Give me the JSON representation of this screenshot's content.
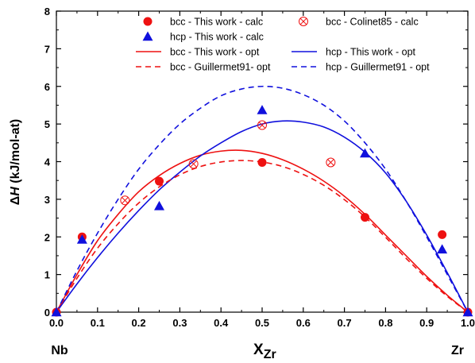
{
  "chart_data": {
    "type": "scatter",
    "xlim": [
      0.0,
      1.0
    ],
    "ylim": [
      0,
      8
    ],
    "x_ticks": [
      "0.0",
      "0.1",
      "0.2",
      "0.3",
      "0.4",
      "0.5",
      "0.6",
      "0.7",
      "0.8",
      "0.9",
      "1.0"
    ],
    "y_ticks": [
      "0",
      "1",
      "2",
      "3",
      "4",
      "5",
      "6",
      "7",
      "8"
    ],
    "ylabel_delta": "Δ",
    "ylabel_var": "H",
    "ylabel_unit": " (kJ/mol-at)",
    "xlabel_main": "X",
    "xlabel_sub": "Zr",
    "x_end_left": "Nb",
    "x_end_right": "Zr",
    "legend_position": "top",
    "grid": false,
    "colors": {
      "red": "#ee1111",
      "blue": "#1010dd"
    },
    "series": [
      {
        "name": "bcc - This work - calc",
        "kind": "points",
        "marker": "circle",
        "color": "#ee1111",
        "points": [
          [
            0.0,
            0.0
          ],
          [
            0.0625,
            2.0
          ],
          [
            0.25,
            3.48
          ],
          [
            0.5,
            3.98
          ],
          [
            0.75,
            2.52
          ],
          [
            0.9375,
            2.06
          ],
          [
            1.0,
            0.0
          ]
        ]
      },
      {
        "name": "hcp - This work - calc",
        "kind": "points",
        "marker": "triangle",
        "color": "#1010dd",
        "points": [
          [
            0.0,
            0.0
          ],
          [
            0.0625,
            1.93
          ],
          [
            0.25,
            2.82
          ],
          [
            0.5,
            5.37
          ],
          [
            0.75,
            4.22
          ],
          [
            0.9375,
            1.67
          ],
          [
            1.0,
            0.0
          ]
        ]
      },
      {
        "name": "bcc - Colinet85 - calc",
        "kind": "points",
        "marker": "circle-x",
        "color": "#ee1111",
        "points": [
          [
            0.1667,
            2.97
          ],
          [
            0.3333,
            3.94
          ],
          [
            0.5,
            4.97
          ],
          [
            0.6667,
            3.98
          ]
        ]
      },
      {
        "name": "bcc - This work - opt",
        "kind": "curve",
        "dash": false,
        "color": "#ee1111",
        "points": [
          [
            0,
            0
          ],
          [
            0.05,
            1.0
          ],
          [
            0.1,
            1.9
          ],
          [
            0.15,
            2.6
          ],
          [
            0.2,
            3.2
          ],
          [
            0.25,
            3.63
          ],
          [
            0.3,
            3.95
          ],
          [
            0.35,
            4.17
          ],
          [
            0.4,
            4.28
          ],
          [
            0.45,
            4.3
          ],
          [
            0.5,
            4.22
          ],
          [
            0.55,
            4.05
          ],
          [
            0.6,
            3.8
          ],
          [
            0.65,
            3.48
          ],
          [
            0.7,
            3.08
          ],
          [
            0.75,
            2.6
          ],
          [
            0.8,
            2.05
          ],
          [
            0.85,
            1.5
          ],
          [
            0.9,
            0.95
          ],
          [
            0.95,
            0.45
          ],
          [
            1.0,
            0
          ]
        ]
      },
      {
        "name": "hcp - This work - opt",
        "kind": "curve",
        "dash": false,
        "color": "#1010dd",
        "points": [
          [
            0,
            0
          ],
          [
            0.05,
            0.75
          ],
          [
            0.1,
            1.45
          ],
          [
            0.15,
            2.1
          ],
          [
            0.2,
            2.7
          ],
          [
            0.25,
            3.25
          ],
          [
            0.3,
            3.72
          ],
          [
            0.35,
            4.15
          ],
          [
            0.4,
            4.5
          ],
          [
            0.45,
            4.8
          ],
          [
            0.5,
            5.0
          ],
          [
            0.55,
            5.08
          ],
          [
            0.6,
            5.05
          ],
          [
            0.65,
            4.92
          ],
          [
            0.7,
            4.65
          ],
          [
            0.75,
            4.25
          ],
          [
            0.8,
            3.7
          ],
          [
            0.85,
            2.95
          ],
          [
            0.9,
            2.05
          ],
          [
            0.95,
            1.05
          ],
          [
            1.0,
            0
          ]
        ]
      },
      {
        "name": "bcc - Guillermet91- opt",
        "kind": "curve",
        "dash": true,
        "color": "#ee1111",
        "points": [
          [
            0,
            0
          ],
          [
            0.05,
            0.9
          ],
          [
            0.1,
            1.7
          ],
          [
            0.15,
            2.35
          ],
          [
            0.2,
            2.9
          ],
          [
            0.25,
            3.33
          ],
          [
            0.3,
            3.65
          ],
          [
            0.35,
            3.87
          ],
          [
            0.4,
            3.99
          ],
          [
            0.45,
            4.03
          ],
          [
            0.5,
            3.99
          ],
          [
            0.55,
            3.87
          ],
          [
            0.6,
            3.66
          ],
          [
            0.65,
            3.37
          ],
          [
            0.7,
            2.99
          ],
          [
            0.75,
            2.53
          ],
          [
            0.8,
            1.99
          ],
          [
            0.85,
            1.43
          ],
          [
            0.9,
            0.9
          ],
          [
            0.95,
            0.42
          ],
          [
            1.0,
            0
          ]
        ]
      },
      {
        "name": "hcp - Guillermet91 - opt",
        "kind": "curve",
        "dash": true,
        "color": "#1010dd",
        "points": [
          [
            0,
            0
          ],
          [
            0.05,
            1.1
          ],
          [
            0.1,
            2.1
          ],
          [
            0.15,
            3.0
          ],
          [
            0.2,
            3.8
          ],
          [
            0.25,
            4.45
          ],
          [
            0.3,
            5.0
          ],
          [
            0.35,
            5.42
          ],
          [
            0.4,
            5.75
          ],
          [
            0.45,
            5.93
          ],
          [
            0.5,
            6.0
          ],
          [
            0.55,
            5.95
          ],
          [
            0.6,
            5.78
          ],
          [
            0.65,
            5.5
          ],
          [
            0.7,
            5.08
          ],
          [
            0.75,
            4.5
          ],
          [
            0.8,
            3.8
          ],
          [
            0.85,
            2.95
          ],
          [
            0.9,
            2.0
          ],
          [
            0.95,
            1.0
          ],
          [
            1.0,
            0
          ]
        ]
      }
    ],
    "legend": [
      {
        "label": "bcc - This work - calc",
        "marker": "circle",
        "color": "#ee1111"
      },
      {
        "label": "bcc - Colinet85 - calc",
        "marker": "circle-x",
        "color": "#ee1111"
      },
      {
        "label": "hcp - This work - calc",
        "marker": "triangle",
        "color": "#1010dd"
      },
      {
        "label": "bcc - This work - opt",
        "marker": "solid-line",
        "color": "#ee1111"
      },
      {
        "label": "hcp - This work - opt",
        "marker": "solid-line",
        "color": "#1010dd"
      },
      {
        "label": "bcc - Guillermet91- opt",
        "marker": "dashed-line",
        "color": "#ee1111"
      },
      {
        "label": "hcp - Guillermet91 - opt",
        "marker": "dashed-line",
        "color": "#1010dd"
      }
    ]
  }
}
